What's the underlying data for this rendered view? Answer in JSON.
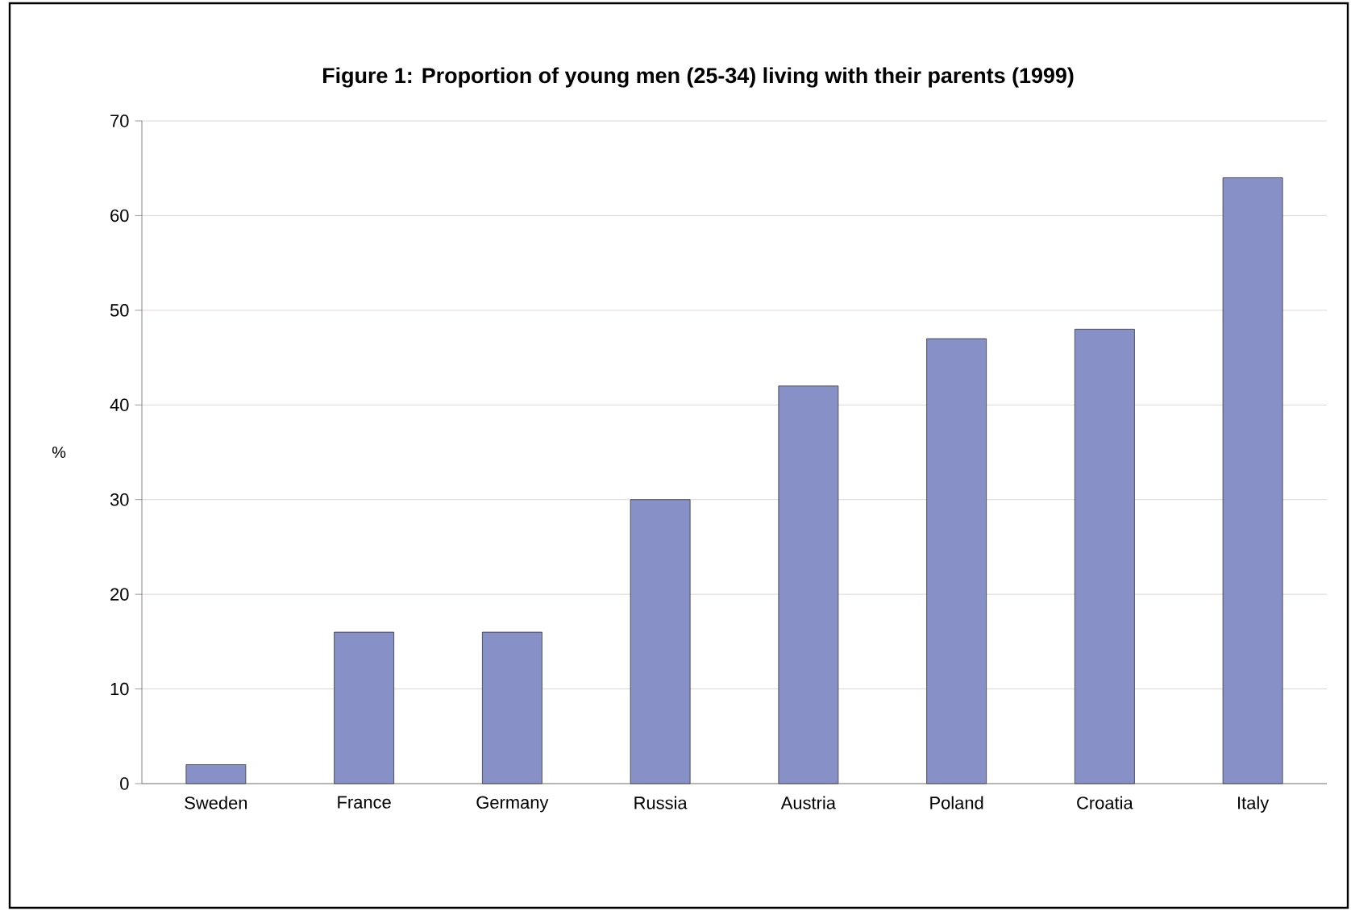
{
  "chart_data": {
    "type": "bar",
    "title": "Figure 1: Proportion of young men (25-34) living with their parents (1999)",
    "ylabel": "%",
    "categories": [
      "Sweden",
      "France",
      "Germany",
      "Russia",
      "Austria",
      "Poland",
      "Croatia",
      "Italy"
    ],
    "values": [
      2,
      16,
      16,
      30,
      42,
      47,
      48,
      64
    ],
    "color": "#8890c8",
    "ylim": [
      0,
      70
    ],
    "yticks": [
      0,
      10,
      20,
      30,
      40,
      50,
      60,
      70
    ],
    "grid": "y"
  }
}
